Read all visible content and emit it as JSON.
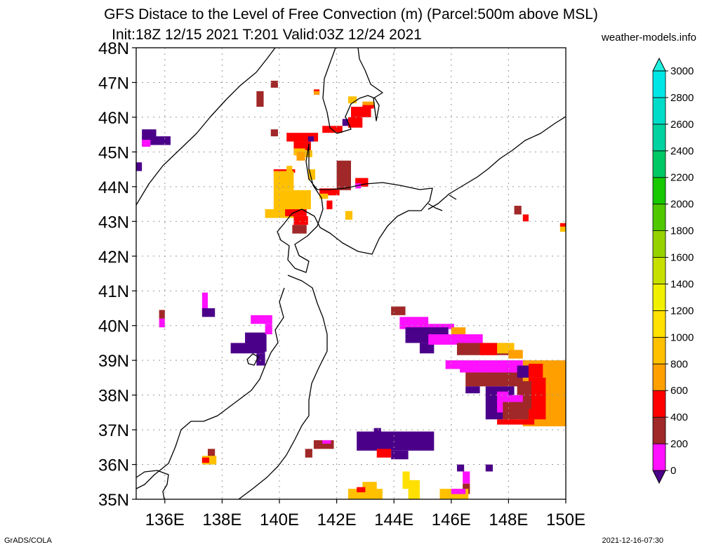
{
  "title_line1": "GFS Distace to the Level of Free Convection (m) (Parcel:500m above MSL)",
  "title_line2": "Init:18Z 12/15 2021 T:201 Valid:03Z 12/24 2021",
  "site": "weather-models.info",
  "footer_left": "GrADS/COLA",
  "footer_right": "2021-12-16-07:30",
  "lat_labels": [
    "48N",
    "47N",
    "46N",
    "45N",
    "44N",
    "43N",
    "42N",
    "41N",
    "40N",
    "39N",
    "38N",
    "37N",
    "36N",
    "35N"
  ],
  "lon_labels": [
    "136E",
    "138E",
    "140E",
    "142E",
    "144E",
    "146E",
    "148E",
    "150E"
  ],
  "colorbar": {
    "levels": [
      "0",
      "200",
      "400",
      "600",
      "800",
      "1000",
      "1200",
      "1400",
      "1600",
      "1800",
      "2000",
      "2200",
      "2400",
      "2600",
      "2800",
      "3000"
    ],
    "colors": [
      "#4b0089",
      "#ff10ff",
      "#a02828",
      "#ff0000",
      "#ffa000",
      "#ffc000",
      "#ffe000",
      "#f0f000",
      "#c8e000",
      "#96d200",
      "#50c800",
      "#16c800",
      "#00c864",
      "#00d2a0",
      "#00dcc8",
      "#00e6e6",
      "#20f0e0"
    ]
  },
  "map_domain": {
    "lon": [
      135,
      150
    ],
    "lat": [
      35,
      48
    ]
  },
  "patches": [
    {
      "lon": 139.7,
      "lat": 47.05,
      "w": 0.25,
      "h": 0.2,
      "c": 2
    },
    {
      "lon": 139.2,
      "lat": 46.75,
      "w": 0.25,
      "h": 0.45,
      "c": 2
    },
    {
      "lon": 141.2,
      "lat": 46.8,
      "w": 0.2,
      "h": 0.15,
      "c": 3
    },
    {
      "lon": 141.2,
      "lat": 46.75,
      "w": 0.2,
      "h": 0.1,
      "c": 4
    },
    {
      "lon": 142.4,
      "lat": 46.6,
      "w": 0.3,
      "h": 0.2,
      "c": 5
    },
    {
      "lon": 142.5,
      "lat": 46.3,
      "w": 0.7,
      "h": 0.3,
      "c": 3
    },
    {
      "lon": 142.9,
      "lat": 46.45,
      "w": 0.4,
      "h": 0.15,
      "c": 4
    },
    {
      "lon": 142.9,
      "lat": 46.35,
      "w": 0.4,
      "h": 0.1,
      "c": 3
    },
    {
      "lon": 142.4,
      "lat": 46.0,
      "w": 0.5,
      "h": 0.3,
      "c": 3
    },
    {
      "lon": 142.2,
      "lat": 45.95,
      "w": 0.2,
      "h": 0.2,
      "c": 0
    },
    {
      "lon": 139.7,
      "lat": 45.65,
      "w": 0.25,
      "h": 0.2,
      "c": 2
    },
    {
      "lon": 141.5,
      "lat": 45.75,
      "w": 0.7,
      "h": 0.2,
      "c": 3
    },
    {
      "lon": 140.25,
      "lat": 45.55,
      "w": 1.1,
      "h": 0.25,
      "c": 3
    },
    {
      "lon": 140.5,
      "lat": 45.3,
      "w": 0.6,
      "h": 0.25,
      "c": 3
    },
    {
      "lon": 140.5,
      "lat": 45.1,
      "w": 0.4,
      "h": 0.2,
      "c": 5
    },
    {
      "lon": 140.9,
      "lat": 45.05,
      "w": 0.25,
      "h": 0.2,
      "c": 5
    },
    {
      "lon": 140.6,
      "lat": 45.0,
      "w": 0.3,
      "h": 0.25,
      "c": 4
    },
    {
      "lon": 141.0,
      "lat": 45.45,
      "w": 0.2,
      "h": 0.15,
      "c": 0
    },
    {
      "lon": 135.2,
      "lat": 45.65,
      "w": 0.5,
      "h": 0.25,
      "c": 0
    },
    {
      "lon": 135.2,
      "lat": 45.45,
      "w": 1.0,
      "h": 0.25,
      "c": 0
    },
    {
      "lon": 135.2,
      "lat": 45.35,
      "w": 0.3,
      "h": 0.2,
      "c": 1
    },
    {
      "lon": 135.0,
      "lat": 44.7,
      "w": 0.2,
      "h": 0.25,
      "c": 0
    },
    {
      "lon": 139.8,
      "lat": 44.5,
      "w": 0.75,
      "h": 0.1,
      "c": 3
    },
    {
      "lon": 139.8,
      "lat": 44.45,
      "w": 0.7,
      "h": 0.55,
      "c": 5
    },
    {
      "lon": 139.8,
      "lat": 43.9,
      "w": 1.3,
      "h": 0.55,
      "c": 5
    },
    {
      "lon": 139.5,
      "lat": 43.35,
      "w": 1.2,
      "h": 0.25,
      "c": 5
    },
    {
      "lon": 140.2,
      "lat": 43.35,
      "w": 0.75,
      "h": 0.2,
      "c": 3
    },
    {
      "lon": 140.5,
      "lat": 43.15,
      "w": 0.5,
      "h": 0.25,
      "c": 3
    },
    {
      "lon": 140.45,
      "lat": 42.9,
      "w": 0.5,
      "h": 0.25,
      "c": 2
    },
    {
      "lon": 140.25,
      "lat": 44.6,
      "w": 0.2,
      "h": 0.25,
      "c": 5
    },
    {
      "lon": 141.0,
      "lat": 44.5,
      "w": 0.25,
      "h": 0.3,
      "c": 5
    },
    {
      "lon": 141.4,
      "lat": 43.95,
      "w": 0.7,
      "h": 0.2,
      "c": 3
    },
    {
      "lon": 141.4,
      "lat": 43.8,
      "w": 0.3,
      "h": 0.15,
      "c": 5
    },
    {
      "lon": 141.65,
      "lat": 43.6,
      "w": 0.2,
      "h": 0.25,
      "c": 3
    },
    {
      "lon": 142.0,
      "lat": 44.75,
      "w": 0.5,
      "h": 0.85,
      "c": 2
    },
    {
      "lon": 142.2,
      "lat": 44.25,
      "w": 0.3,
      "h": 0.3,
      "c": 2
    },
    {
      "lon": 142.65,
      "lat": 44.25,
      "w": 0.45,
      "h": 0.25,
      "c": 3
    },
    {
      "lon": 142.65,
      "lat": 44.1,
      "w": 0.2,
      "h": 0.15,
      "c": 1
    },
    {
      "lon": 142.3,
      "lat": 43.3,
      "w": 0.25,
      "h": 0.25,
      "c": 5
    },
    {
      "lon": 148.2,
      "lat": 43.45,
      "w": 0.25,
      "h": 0.25,
      "c": 2
    },
    {
      "lon": 148.5,
      "lat": 43.2,
      "w": 0.2,
      "h": 0.2,
      "c": 3
    },
    {
      "lon": 149.8,
      "lat": 42.95,
      "w": 0.2,
      "h": 0.25,
      "c": 5
    },
    {
      "lon": 149.8,
      "lat": 42.95,
      "w": 0.2,
      "h": 0.1,
      "c": 3
    },
    {
      "lon": 137.3,
      "lat": 40.95,
      "w": 0.2,
      "h": 0.5,
      "c": 1
    },
    {
      "lon": 137.3,
      "lat": 40.5,
      "w": 0.45,
      "h": 0.25,
      "c": 0
    },
    {
      "lon": 135.8,
      "lat": 40.45,
      "w": 0.2,
      "h": 0.25,
      "c": 2
    },
    {
      "lon": 135.8,
      "lat": 40.2,
      "w": 0.2,
      "h": 0.25,
      "c": 1
    },
    {
      "lon": 138.8,
      "lat": 39.8,
      "w": 0.75,
      "h": 0.55,
      "c": 0
    },
    {
      "lon": 139.0,
      "lat": 40.3,
      "w": 0.75,
      "h": 0.25,
      "c": 1
    },
    {
      "lon": 139.5,
      "lat": 40.05,
      "w": 0.25,
      "h": 0.3,
      "c": 1
    },
    {
      "lon": 138.3,
      "lat": 39.5,
      "w": 1.2,
      "h": 0.3,
      "c": 0
    },
    {
      "lon": 139.2,
      "lat": 39.2,
      "w": 0.3,
      "h": 0.35,
      "c": 0
    },
    {
      "lon": 143.9,
      "lat": 40.55,
      "w": 0.5,
      "h": 0.25,
      "c": 2
    },
    {
      "lon": 144.2,
      "lat": 40.25,
      "w": 1.0,
      "h": 0.3,
      "c": 1
    },
    {
      "lon": 144.2,
      "lat": 40.05,
      "w": 1.9,
      "h": 0.15,
      "c": 1
    },
    {
      "lon": 144.4,
      "lat": 39.95,
      "w": 1.5,
      "h": 0.45,
      "c": 0
    },
    {
      "lon": 144.9,
      "lat": 39.5,
      "w": 0.5,
      "h": 0.3,
      "c": 0
    },
    {
      "lon": 146.0,
      "lat": 39.95,
      "w": 0.5,
      "h": 0.2,
      "c": 4
    },
    {
      "lon": 146.0,
      "lat": 39.75,
      "w": 0.4,
      "h": 0.2,
      "c": 3
    },
    {
      "lon": 145.2,
      "lat": 39.75,
      "w": 1.9,
      "h": 0.3,
      "c": 1
    },
    {
      "lon": 146.2,
      "lat": 39.5,
      "w": 1.8,
      "h": 0.35,
      "c": 2
    },
    {
      "lon": 147.0,
      "lat": 39.5,
      "w": 0.6,
      "h": 0.35,
      "c": 3
    },
    {
      "lon": 147.6,
      "lat": 39.5,
      "w": 0.6,
      "h": 0.3,
      "c": 5
    },
    {
      "lon": 148.0,
      "lat": 39.3,
      "w": 0.5,
      "h": 0.25,
      "c": 4
    },
    {
      "lon": 148.5,
      "lat": 39.0,
      "w": 1.5,
      "h": 1.9,
      "c": 4
    },
    {
      "lon": 145.8,
      "lat": 39.0,
      "w": 0.5,
      "h": 0.25,
      "c": 1
    },
    {
      "lon": 146.3,
      "lat": 39.0,
      "w": 2.2,
      "h": 0.35,
      "c": 1
    },
    {
      "lon": 146.5,
      "lat": 38.65,
      "w": 2.0,
      "h": 0.4,
      "c": 2
    },
    {
      "lon": 146.5,
      "lat": 38.25,
      "w": 0.5,
      "h": 0.2,
      "c": 0
    },
    {
      "lon": 147.3,
      "lat": 38.85,
      "w": 1.4,
      "h": 0.2,
      "c": 1
    },
    {
      "lon": 148.3,
      "lat": 38.85,
      "w": 0.4,
      "h": 0.35,
      "c": 0
    },
    {
      "lon": 148.7,
      "lat": 38.9,
      "w": 0.5,
      "h": 0.4,
      "c": 3
    },
    {
      "lon": 148.7,
      "lat": 38.5,
      "w": 0.6,
      "h": 1.2,
      "c": 3
    },
    {
      "lon": 148.3,
      "lat": 38.4,
      "w": 0.5,
      "h": 0.8,
      "c": 2
    },
    {
      "lon": 147.2,
      "lat": 38.25,
      "w": 1.0,
      "h": 0.95,
      "c": 0
    },
    {
      "lon": 147.6,
      "lat": 38.1,
      "w": 0.4,
      "h": 0.6,
      "c": 1
    },
    {
      "lon": 148.0,
      "lat": 38.0,
      "w": 0.5,
      "h": 0.2,
      "c": 1
    },
    {
      "lon": 147.8,
      "lat": 37.8,
      "w": 0.9,
      "h": 0.5,
      "c": 2
    },
    {
      "lon": 147.6,
      "lat": 37.3,
      "w": 1.3,
      "h": 0.15,
      "c": 3
    },
    {
      "lon": 143.3,
      "lat": 37.05,
      "w": 0.25,
      "h": 0.25,
      "c": 0
    },
    {
      "lon": 142.7,
      "lat": 36.95,
      "w": 2.7,
      "h": 0.55,
      "c": 0
    },
    {
      "lon": 143.9,
      "lat": 36.4,
      "w": 0.6,
      "h": 0.25,
      "c": 0
    },
    {
      "lon": 141.2,
      "lat": 36.7,
      "w": 0.7,
      "h": 0.25,
      "c": 2
    },
    {
      "lon": 141.5,
      "lat": 36.7,
      "w": 0.3,
      "h": 0.1,
      "c": 1
    },
    {
      "lon": 140.9,
      "lat": 36.45,
      "w": 0.25,
      "h": 0.25,
      "c": 2
    },
    {
      "lon": 143.4,
      "lat": 36.45,
      "w": 0.5,
      "h": 0.25,
      "c": 3
    },
    {
      "lon": 137.5,
      "lat": 36.45,
      "w": 0.25,
      "h": 0.25,
      "c": 2
    },
    {
      "lon": 137.3,
      "lat": 36.25,
      "w": 0.5,
      "h": 0.25,
      "c": 5
    },
    {
      "lon": 137.3,
      "lat": 36.2,
      "w": 0.25,
      "h": 0.15,
      "c": 3
    },
    {
      "lon": 146.2,
      "lat": 36.0,
      "w": 0.25,
      "h": 0.2,
      "c": 0
    },
    {
      "lon": 147.2,
      "lat": 36.0,
      "w": 0.25,
      "h": 0.2,
      "c": 0
    },
    {
      "lon": 146.4,
      "lat": 35.8,
      "w": 0.25,
      "h": 0.35,
      "c": 1
    },
    {
      "lon": 146.4,
      "lat": 35.45,
      "w": 0.25,
      "h": 0.3,
      "c": 2
    },
    {
      "lon": 145.6,
      "lat": 35.3,
      "w": 1.0,
      "h": 0.3,
      "c": 5
    },
    {
      "lon": 146.0,
      "lat": 35.3,
      "w": 0.5,
      "h": 0.15,
      "c": 1
    },
    {
      "lon": 144.3,
      "lat": 35.8,
      "w": 0.25,
      "h": 0.5,
      "c": 6
    },
    {
      "lon": 144.5,
      "lat": 35.55,
      "w": 0.4,
      "h": 0.55,
      "c": 6
    },
    {
      "lon": 142.9,
      "lat": 35.5,
      "w": 0.5,
      "h": 0.3,
      "c": 5
    },
    {
      "lon": 142.4,
      "lat": 35.3,
      "w": 1.2,
      "h": 0.3,
      "c": 5
    },
    {
      "lon": 142.7,
      "lat": 35.35,
      "w": 0.3,
      "h": 0.15,
      "c": 3
    }
  ]
}
